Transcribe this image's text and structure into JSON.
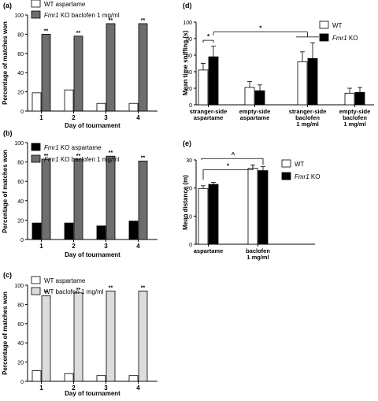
{
  "chart_data": [
    {
      "panel": "(a)",
      "type": "bar",
      "xlabel": "Day of tournament",
      "ylabel": "Percentage of matches won",
      "ylim": [
        0,
        100
      ],
      "yticks": [
        "0",
        "20",
        "40",
        "60",
        "80",
        "100"
      ],
      "categories": [
        "1",
        "2",
        "3",
        "4"
      ],
      "legend_position": "top-left",
      "series": [
        {
          "name": "WT aspartame",
          "name_italic": "",
          "name_rest": "WT aspartame",
          "color": "#ffffff",
          "values": [
            19,
            22,
            8,
            8
          ]
        },
        {
          "name": "Fmr1 KO baclofen 1 mg/ml",
          "name_italic": "Fmr1",
          "name_rest": " KO baclofen 1 mg/ml",
          "color": "#6e6e6e",
          "values": [
            80,
            78,
            91,
            91
          ]
        }
      ],
      "annotations": [
        "**",
        "**",
        "**",
        "**"
      ]
    },
    {
      "panel": "(b)",
      "type": "bar",
      "xlabel": "Day of tournament",
      "ylabel": "Percentage of matches won",
      "ylim": [
        0,
        100
      ],
      "yticks": [
        "0",
        "20",
        "40",
        "60",
        "80",
        "100"
      ],
      "categories": [
        "1",
        "2",
        "3",
        "4"
      ],
      "legend_position": "top-left",
      "series": [
        {
          "name": "Fmr1 KO aspartame",
          "name_italic": "Fmr1",
          "name_rest": " KO aspartame",
          "color": "#000000",
          "values": [
            17,
            17,
            14,
            19
          ]
        },
        {
          "name": "Fmr1 KO baclofen 1 mg/ml",
          "name_italic": "Fmr1",
          "name_rest": " KO baclofen 1 mg/ml",
          "color": "#6e6e6e",
          "values": [
            83,
            83,
            86,
            81
          ]
        }
      ],
      "annotations": [
        "**",
        "**",
        "**",
        "**"
      ]
    },
    {
      "panel": "(c)",
      "type": "bar",
      "xlabel": "Day of tournament",
      "ylabel": "Percentage of matches won",
      "ylim": [
        0,
        100
      ],
      "yticks": [
        "0",
        "20",
        "40",
        "60",
        "80",
        "100"
      ],
      "categories": [
        "1",
        "2",
        "3",
        "4"
      ],
      "legend_position": "top-left",
      "series": [
        {
          "name": "WT aspartame",
          "name_italic": "",
          "name_rest": "WT aspartame",
          "color": "#ffffff",
          "values": [
            11,
            8,
            6,
            6
          ]
        },
        {
          "name": "WT baclofen 1 mg/ml",
          "name_italic": "",
          "name_rest": "WT baclofen 1 mg/ml",
          "color": "#dcdcdc",
          "values": [
            89,
            92,
            94,
            94
          ]
        }
      ],
      "annotations": [
        "**",
        "**",
        "**",
        "**"
      ]
    },
    {
      "panel": "(d)",
      "type": "bar",
      "ylabel": "Mean time sniffing (s)",
      "ylim": [
        0,
        100
      ],
      "yticks": [
        "0",
        "20",
        "40",
        "60",
        "80",
        "100"
      ],
      "categories": [
        [
          "stranger-side",
          "aspartame"
        ],
        [
          "empty-side",
          "aspartame"
        ],
        [
          "stranger-side",
          "baclofen",
          "1 mg/ml"
        ],
        [
          "empty-side",
          "baclofen",
          "1 mg/ml"
        ]
      ],
      "legend_position": "top-right",
      "series": [
        {
          "name": "WT",
          "name_italic": "",
          "name_rest": "WT",
          "color": "#ffffff",
          "values": [
            42,
            21,
            52,
            14
          ],
          "errors": [
            8,
            7,
            12,
            6
          ]
        },
        {
          "name": "Fmr1 KO",
          "name_italic": "Fmr1",
          "name_rest": " KO",
          "color": "#000000",
          "values": [
            58,
            17,
            56,
            15
          ],
          "errors": [
            13,
            7,
            19,
            6
          ]
        }
      ],
      "annotations": [
        "*",
        "*"
      ]
    },
    {
      "panel": "(e)",
      "type": "bar",
      "ylabel": "Mean distance (m)",
      "ylim": [
        0,
        30
      ],
      "yticks": [
        "0",
        "10",
        "20",
        "30"
      ],
      "categories": [
        [
          "aspartame"
        ],
        [
          "baclofen",
          "1 mg/ml"
        ]
      ],
      "legend_position": "top-right",
      "series": [
        {
          "name": "WT",
          "name_italic": "",
          "name_rest": "WT",
          "color": "#ffffff",
          "values": [
            19.8,
            27.0
          ],
          "errors": [
            1.0,
            1.2
          ]
        },
        {
          "name": "Fmr1 KO",
          "name_italic": "Fmr1",
          "name_rest": " KO",
          "color": "#000000",
          "values": [
            21.3,
            26.2
          ],
          "errors": [
            0.7,
            1.4
          ]
        }
      ],
      "annotations": [
        "*",
        "^"
      ]
    }
  ]
}
